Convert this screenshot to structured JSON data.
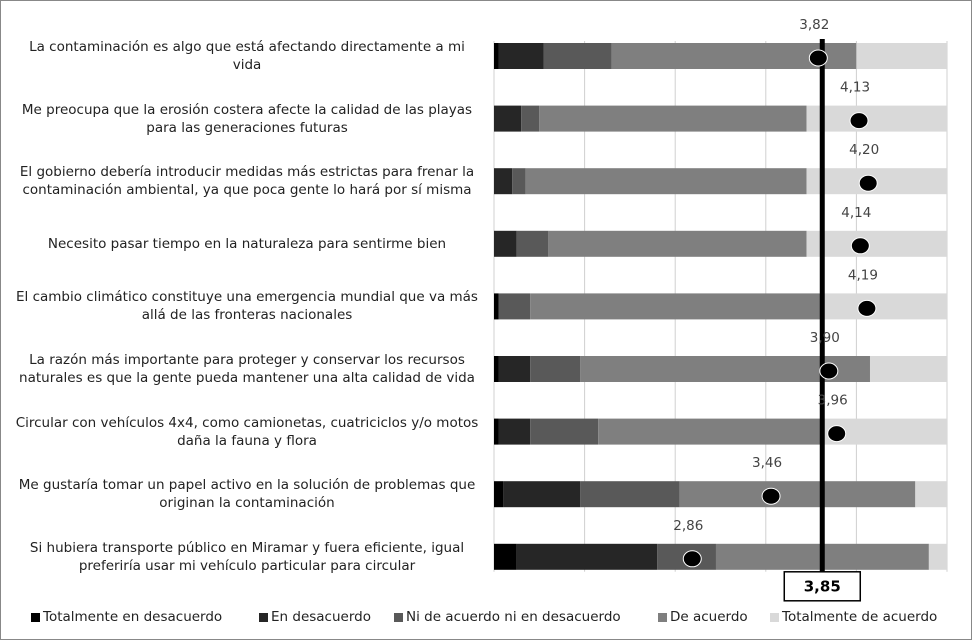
{
  "chart_data": {
    "type": "stacked_bar_horizontal",
    "categories": [
      "La contaminación es algo que está afectando directamente a mi vida",
      "Me preocupa que la erosión costera afecte la calidad de las playas para las generaciones futuras",
      "El gobierno debería introducir medidas más estrictas para frenar la contaminación ambiental, ya que poca gente lo hará por sí misma",
      "Necesito pasar tiempo en la naturaleza para sentirme bien",
      "El cambio climático constituye una emergencia mundial que va más allá de las fronteras nacionales",
      "La razón más importante para proteger y conservar los recursos naturales es que la gente pueda mantener una alta calidad de vida",
      "Circular con vehículos 4x4, como camionetas, cuatriciclos y/o motos daña la fauna y flora",
      "Me gustaría tomar un papel activo en la solución de problemas que originan la contaminación",
      "Si hubiera transporte público en Miramar y fuera eficiente, igual preferiría usar mi vehículo particular para circular"
    ],
    "series": [
      {
        "name": "Totalmente en desacuerdo",
        "color": "#000000",
        "values": [
          1,
          0,
          0,
          0,
          1,
          1,
          1,
          2,
          5
        ]
      },
      {
        "name": "En desacuerdo",
        "color": "#262626",
        "values": [
          10,
          6,
          4,
          5,
          0,
          7,
          7,
          17,
          31
        ]
      },
      {
        "name": "Ni de acuerdo ni en desacuerdo",
        "color": "#595959",
        "values": [
          15,
          4,
          3,
          7,
          7,
          11,
          15,
          22,
          13
        ]
      },
      {
        "name": "De acuerdo",
        "color": "#7f7f7f",
        "values": [
          54,
          59,
          62,
          57,
          64,
          64,
          49,
          52,
          47
        ]
      },
      {
        "name": "Totalmente de acuerdo",
        "color": "#d9d9d9",
        "values": [
          20,
          31,
          31,
          31,
          28,
          17,
          28,
          7,
          4
        ]
      }
    ],
    "xlim": [
      0,
      100
    ],
    "xticks": [
      0,
      20,
      40,
      60,
      80,
      100
    ],
    "grid": true,
    "means": {
      "axis": "x2",
      "color": "#000000",
      "values": [
        3.82,
        4.13,
        4.2,
        4.14,
        4.19,
        3.9,
        3.96,
        3.46,
        2.86
      ],
      "value_labels": [
        "3,82",
        "4,13",
        "4,20",
        "4,14",
        "4,19",
        "3,90",
        "3,96",
        "3,46",
        "2,86"
      ]
    },
    "x2lim": [
      1.35,
      4.8
    ],
    "reference": {
      "value": 3.85,
      "label": "3,85"
    },
    "legend": "bottom"
  }
}
